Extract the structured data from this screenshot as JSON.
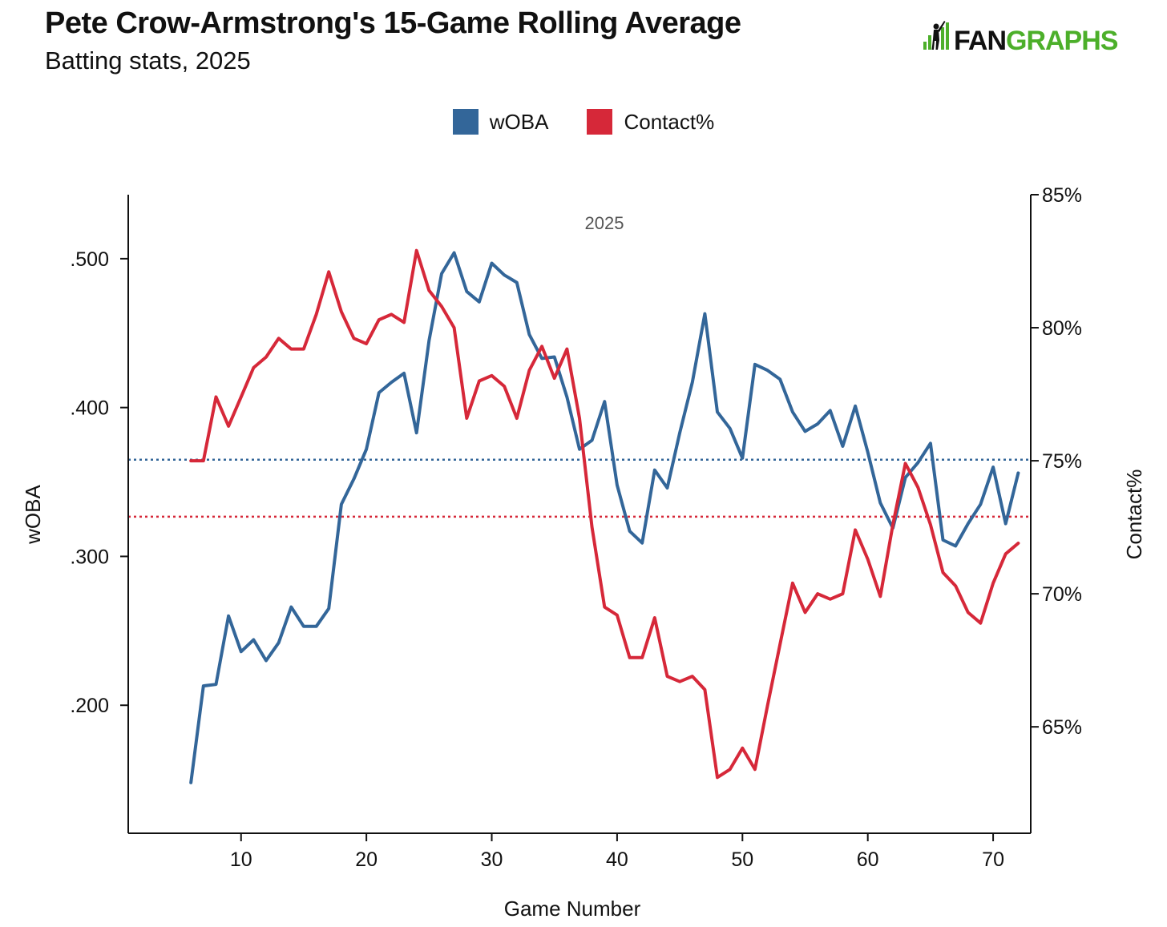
{
  "header": {
    "title": "Pete Crow-Armstrong's 15-Game Rolling Average",
    "subtitle": "Batting stats, 2025",
    "logo_prefix": "FAN",
    "logo_suffix": "GRAPHS"
  },
  "colors": {
    "woba": "#336699",
    "contact": "#d62839",
    "logo_green": "#4caf2a",
    "axis": "#111111"
  },
  "chart_data": {
    "type": "line",
    "title": "Pete Crow-Armstrong's 15-Game Rolling Average",
    "subtitle": "Batting stats, 2025",
    "annotation": "2025",
    "xlabel": "Game Number",
    "ylabel_left": "wOBA",
    "ylabel_right": "Contact%",
    "xlim": [
      1,
      73
    ],
    "x_ticks": [
      10,
      20,
      30,
      40,
      50,
      60,
      70
    ],
    "x_tick_labels": [
      "10",
      "20",
      "30",
      "40",
      "50",
      "60",
      "70"
    ],
    "ylim_left": [
      0.114,
      0.543
    ],
    "y_ticks_left": [
      0.2,
      0.3,
      0.4,
      0.5
    ],
    "y_tick_labels_left": [
      ".200",
      ".300",
      ".400",
      ".500"
    ],
    "ylim_right": [
      61.0,
      85.0
    ],
    "y_ticks_right": [
      65,
      70,
      75,
      80,
      85
    ],
    "y_tick_labels_right": [
      "65%",
      "70%",
      "75%",
      "80%",
      "85%"
    ],
    "legend": [
      "wOBA",
      "Contact%"
    ],
    "legend_position": "top-center",
    "reference_lines": [
      {
        "series": "wOBA",
        "axis": "left",
        "value": 0.365,
        "style": "dotted"
      },
      {
        "series": "Contact%",
        "axis": "right",
        "value": 72.9,
        "style": "dotted"
      }
    ],
    "series": [
      {
        "name": "wOBA",
        "axis": "left",
        "x": [
          6,
          7,
          8,
          9,
          10,
          11,
          12,
          13,
          14,
          15,
          16,
          17,
          18,
          19,
          20,
          21,
          22,
          23,
          24,
          25,
          26,
          27,
          28,
          29,
          30,
          31,
          32,
          33,
          34,
          35,
          36,
          37,
          38,
          39,
          40,
          41,
          42,
          43,
          44,
          45,
          46,
          47,
          48,
          49,
          50,
          51,
          52,
          53,
          54,
          55,
          56,
          57,
          58,
          59,
          60,
          61,
          62,
          63,
          64,
          65,
          66,
          67,
          68,
          69,
          70,
          71,
          72
        ],
        "values": [
          0.148,
          0.213,
          0.214,
          0.26,
          0.236,
          0.244,
          0.23,
          0.242,
          0.266,
          0.253,
          0.253,
          0.265,
          0.335,
          0.352,
          0.372,
          0.41,
          0.417,
          0.423,
          0.383,
          0.445,
          0.49,
          0.504,
          0.478,
          0.471,
          0.497,
          0.489,
          0.484,
          0.449,
          0.433,
          0.434,
          0.407,
          0.372,
          0.378,
          0.404,
          0.348,
          0.317,
          0.309,
          0.358,
          0.346,
          0.383,
          0.417,
          0.463,
          0.397,
          0.386,
          0.366,
          0.429,
          0.425,
          0.419,
          0.397,
          0.384,
          0.389,
          0.398,
          0.374,
          0.401,
          0.37,
          0.336,
          0.319,
          0.353,
          0.363,
          0.376,
          0.311,
          0.307,
          0.322,
          0.335,
          0.36,
          0.322,
          0.356
        ]
      },
      {
        "name": "Contact%",
        "axis": "right",
        "x": [
          6,
          7,
          8,
          9,
          10,
          11,
          12,
          13,
          14,
          15,
          16,
          17,
          18,
          19,
          20,
          21,
          22,
          23,
          24,
          25,
          26,
          27,
          28,
          29,
          30,
          31,
          32,
          33,
          34,
          35,
          36,
          37,
          38,
          39,
          40,
          41,
          42,
          43,
          44,
          45,
          46,
          47,
          48,
          49,
          50,
          51,
          52,
          53,
          54,
          55,
          56,
          57,
          58,
          59,
          60,
          61,
          62,
          63,
          64,
          65,
          66,
          67,
          68,
          69,
          70,
          71,
          72
        ],
        "values": [
          75.0,
          75.0,
          77.4,
          76.3,
          77.4,
          78.5,
          78.9,
          79.6,
          79.2,
          79.2,
          80.5,
          82.1,
          80.6,
          79.6,
          79.4,
          80.3,
          80.5,
          80.2,
          82.9,
          81.4,
          80.8,
          80.0,
          76.6,
          78.0,
          78.2,
          77.8,
          76.6,
          78.4,
          79.3,
          78.1,
          79.2,
          76.6,
          72.5,
          69.5,
          69.2,
          67.6,
          67.6,
          69.1,
          66.9,
          66.7,
          66.9,
          66.4,
          63.1,
          63.4,
          64.2,
          63.4,
          65.8,
          68.1,
          70.4,
          69.3,
          70.0,
          69.8,
          70.0,
          72.4,
          71.3,
          69.9,
          72.6,
          74.9,
          74.0,
          72.6,
          70.8,
          70.3,
          69.3,
          68.9,
          70.4,
          71.5,
          71.9
        ]
      }
    ]
  }
}
